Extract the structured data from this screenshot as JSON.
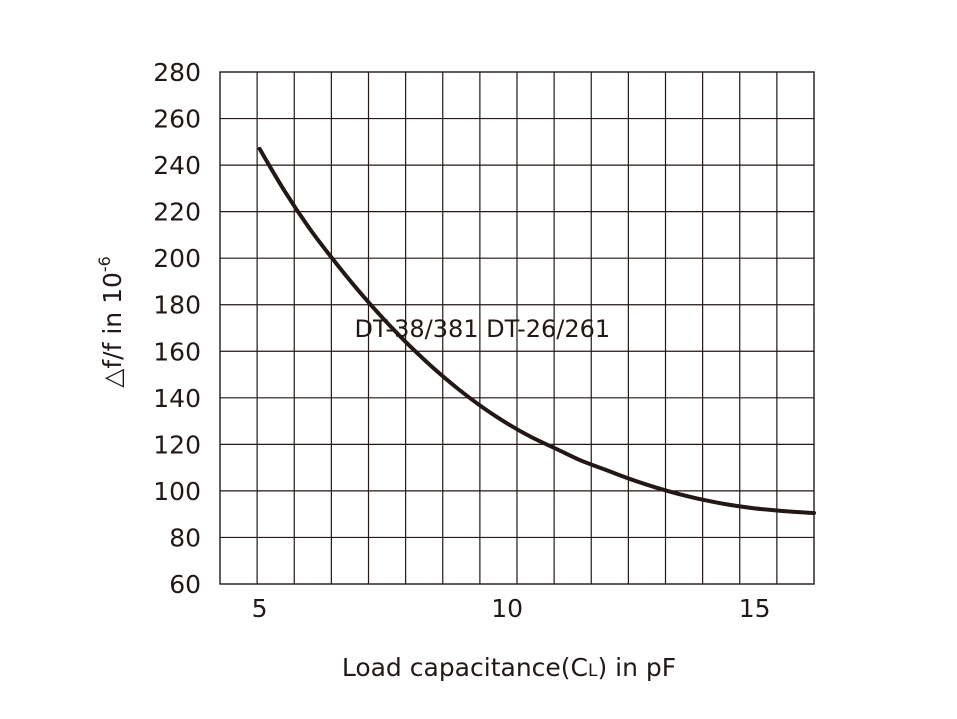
{
  "chart_data": {
    "type": "line",
    "xlabel": "Load capacitance(CL) in pF",
    "xlabel_parts": {
      "main": "Load capacitance(C",
      "sub": "L",
      "tail": ") in pF"
    },
    "ylabel": "△f/f in 10-6",
    "ylabel_parts": {
      "main": "△f/f in 10",
      "sup": "-6"
    },
    "xlim": [
      4.2,
      16.2
    ],
    "ylim": [
      60,
      280
    ],
    "xticks": [
      5,
      10,
      15
    ],
    "yticks": [
      60,
      80,
      100,
      120,
      140,
      160,
      180,
      200,
      220,
      240,
      260,
      280
    ],
    "grid": true,
    "annotations": [
      {
        "text": "DT-38/381 DT-26/261",
        "x": 9.5,
        "y": 170
      }
    ],
    "series": [
      {
        "x": [
          5.0,
          5.5,
          6.0,
          6.5,
          7.0,
          7.5,
          8.0,
          8.5,
          9.0,
          9.5,
          10.0,
          10.5,
          11.0,
          11.5,
          12.0,
          12.5,
          13.0,
          13.5,
          14.0,
          14.5,
          15.0,
          15.5,
          16.2
        ],
        "y": [
          247,
          229,
          213,
          199,
          186,
          174,
          163,
          153,
          144,
          136,
          129,
          123,
          118,
          113,
          109,
          105,
          101.5,
          98.5,
          96,
          94,
          92.5,
          91.5,
          90.5
        ]
      }
    ]
  }
}
